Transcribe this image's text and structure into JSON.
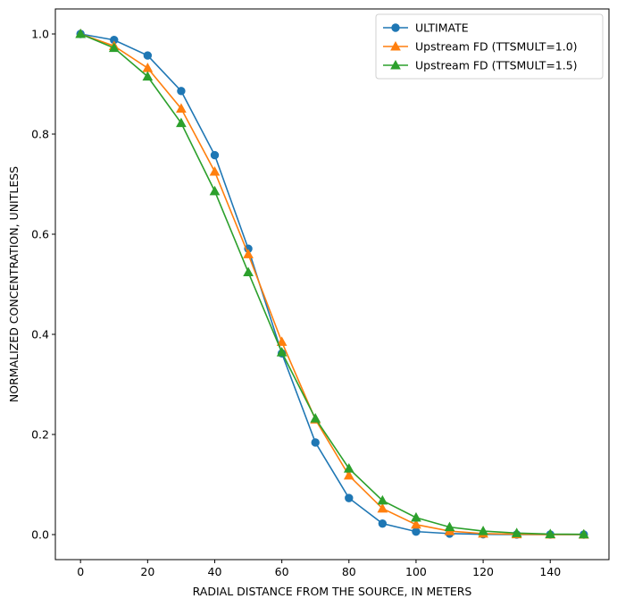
{
  "chart_data": {
    "type": "line",
    "title": "",
    "xlabel": "RADIAL DISTANCE FROM THE SOURCE, IN METERS",
    "ylabel": "NORMALIZED CONCENTRATION, UNITLESS",
    "xlim": [
      -7.5,
      157.5
    ],
    "ylim": [
      -0.05,
      1.05
    ],
    "xticks": [
      0,
      20,
      40,
      60,
      80,
      100,
      120,
      140
    ],
    "yticks": [
      0.0,
      0.2,
      0.4,
      0.6,
      0.8,
      1.0
    ],
    "grid": false,
    "legend_position": "top-right",
    "x": [
      0,
      10,
      20,
      30,
      40,
      50,
      60,
      70,
      80,
      90,
      100,
      110,
      120,
      130,
      140,
      150
    ],
    "series": [
      {
        "name": "ULTIMATE",
        "color": "#1f77b4",
        "marker": "circle",
        "values": [
          1.0,
          0.988,
          0.957,
          0.886,
          0.758,
          0.571,
          0.362,
          0.184,
          0.073,
          0.022,
          0.006,
          0.002,
          0.0005,
          0.0002,
          0.0001,
          0.0
        ]
      },
      {
        "name": "Upstream FD (TTSMULT=1.0)",
        "color": "#ff7f0e",
        "marker": "triangle",
        "values": [
          1.0,
          0.976,
          0.932,
          0.851,
          0.725,
          0.56,
          0.385,
          0.23,
          0.118,
          0.052,
          0.02,
          0.007,
          0.002,
          0.0007,
          0.0002,
          0.0001
        ]
      },
      {
        "name": "Upstream FD (TTSMULT=1.5)",
        "color": "#2ca02c",
        "marker": "triangle",
        "values": [
          1.0,
          0.972,
          0.915,
          0.822,
          0.686,
          0.524,
          0.364,
          0.232,
          0.132,
          0.068,
          0.034,
          0.015,
          0.007,
          0.003,
          0.001,
          0.0005
        ]
      }
    ]
  }
}
